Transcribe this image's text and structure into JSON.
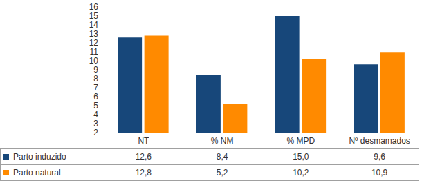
{
  "chart_data": {
    "type": "bar",
    "categories": [
      "NT",
      "% NM",
      "% MPD",
      "Nº desmamados"
    ],
    "series": [
      {
        "name": "Parto induzido",
        "color": "#17477a",
        "values": [
          12.6,
          8.4,
          15.0,
          9.6
        ],
        "value_labels": [
          "12,6",
          "8,4",
          "15,0",
          "9,6"
        ]
      },
      {
        "name": "Parto natural",
        "color": "#ff8a00",
        "values": [
          12.8,
          5.2,
          10.2,
          10.9
        ],
        "value_labels": [
          "12,8",
          "5,2",
          "10,2",
          "10,9"
        ]
      }
    ],
    "ylim": [
      2,
      16
    ],
    "yticks": [
      2,
      3,
      4,
      5,
      6,
      7,
      8,
      9,
      10,
      11,
      12,
      13,
      14,
      15,
      16
    ],
    "grid": false
  }
}
